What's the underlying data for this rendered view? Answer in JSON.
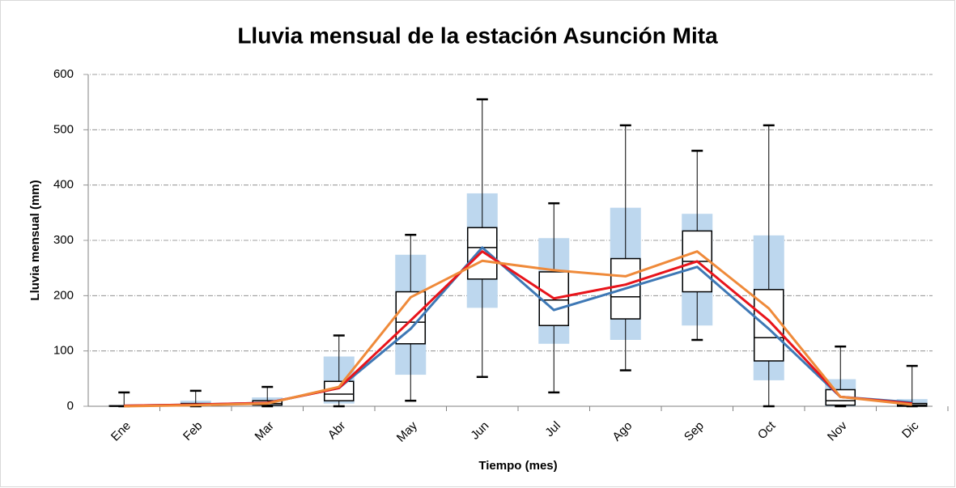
{
  "chart_data": {
    "type": "box",
    "title": "Lluvia mensual de la estación Asunción Mita",
    "y_label": "Lluvia mensual (mm)",
    "x_label": "Tiempo (mes)",
    "categories": [
      "Ene",
      "Feb",
      "Mar",
      "Abr",
      "May",
      "Jun",
      "Jul",
      "Ago",
      "Sep",
      "Oct",
      "Nov",
      "Dic"
    ],
    "ylim": [
      0,
      600
    ],
    "yticks": [
      0,
      100,
      200,
      300,
      400,
      500,
      600
    ],
    "grid": true,
    "band": {
      "color": "#bdd7ee",
      "high": [
        2,
        10,
        16,
        90,
        274,
        385,
        304,
        359,
        348,
        309,
        49,
        13
      ],
      "low": [
        0,
        0,
        0,
        5,
        57,
        178,
        113,
        120,
        146,
        47,
        0,
        0
      ]
    },
    "box": {
      "color": "#000000",
      "whisker_high": [
        25,
        28,
        35,
        128,
        310,
        555,
        367,
        508,
        462,
        508,
        108,
        73
      ],
      "q3": [
        1,
        5,
        10,
        45,
        207,
        323,
        243,
        267,
        317,
        211,
        30,
        5
      ],
      "median": [
        0,
        3,
        5,
        22,
        152,
        287,
        192,
        198,
        262,
        124,
        10,
        2
      ],
      "q1": [
        0,
        2,
        2,
        10,
        113,
        230,
        146,
        158,
        207,
        82,
        2,
        0
      ],
      "whisker_low": [
        0,
        0,
        0,
        0,
        10,
        53,
        25,
        65,
        120,
        0,
        0,
        0
      ]
    },
    "series": [
      {
        "color": "#3e78b5",
        "values": [
          1,
          3,
          6,
          33,
          140,
          287,
          174,
          213,
          252,
          140,
          17,
          7
        ]
      },
      {
        "color": "#e8141b",
        "values": [
          1,
          3,
          6,
          33,
          155,
          280,
          195,
          220,
          262,
          155,
          17,
          5
        ]
      },
      {
        "color": "#ef8a3a",
        "values": [
          0,
          2,
          5,
          35,
          197,
          263,
          246,
          235,
          280,
          177,
          17,
          3
        ]
      }
    ]
  }
}
